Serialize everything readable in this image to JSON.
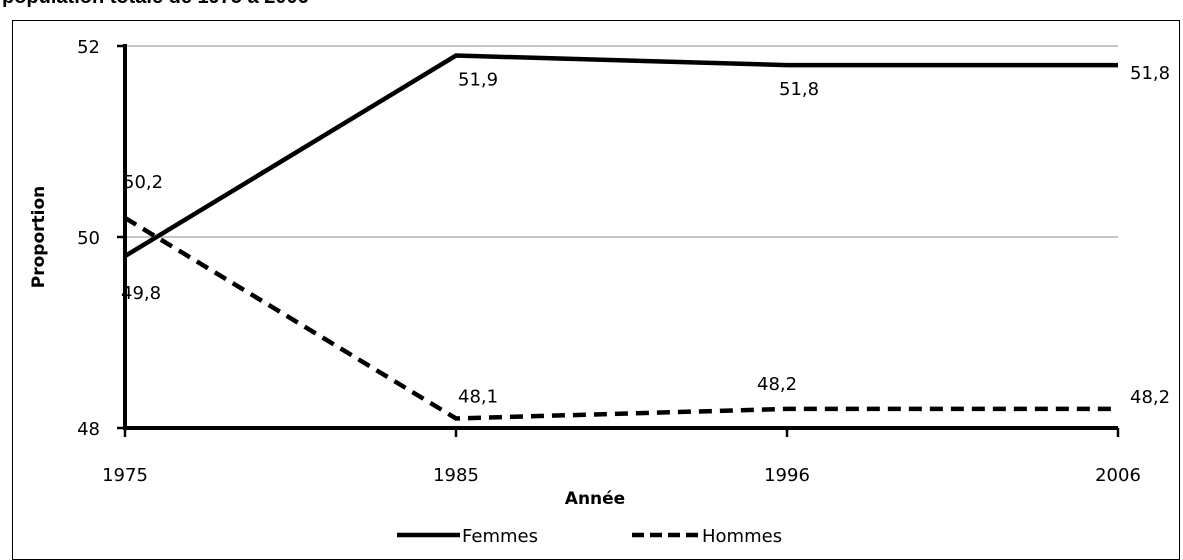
{
  "title": "population totale de 1975 à 2006",
  "chart_data": {
    "type": "line",
    "x": [
      "1975",
      "1985",
      "1996",
      "2006"
    ],
    "xlabel": "Année",
    "ylabel": "Proportion",
    "ylim": [
      48,
      52
    ],
    "yticks": [
      "48",
      "50",
      "52"
    ],
    "grid": true,
    "legend": "bottom",
    "series": [
      {
        "name": "Femmes",
        "values": [
          49.8,
          51.9,
          51.8,
          51.8
        ],
        "labels": [
          "49,8",
          "51,9",
          "51,8",
          "51,8"
        ],
        "style": "solid",
        "color": "#000000"
      },
      {
        "name": "Hommes",
        "values": [
          50.2,
          48.1,
          48.2,
          48.2
        ],
        "labels": [
          "50,2",
          "48,1",
          "48,2",
          "48,2"
        ],
        "style": "dashed",
        "color": "#000000"
      }
    ]
  }
}
